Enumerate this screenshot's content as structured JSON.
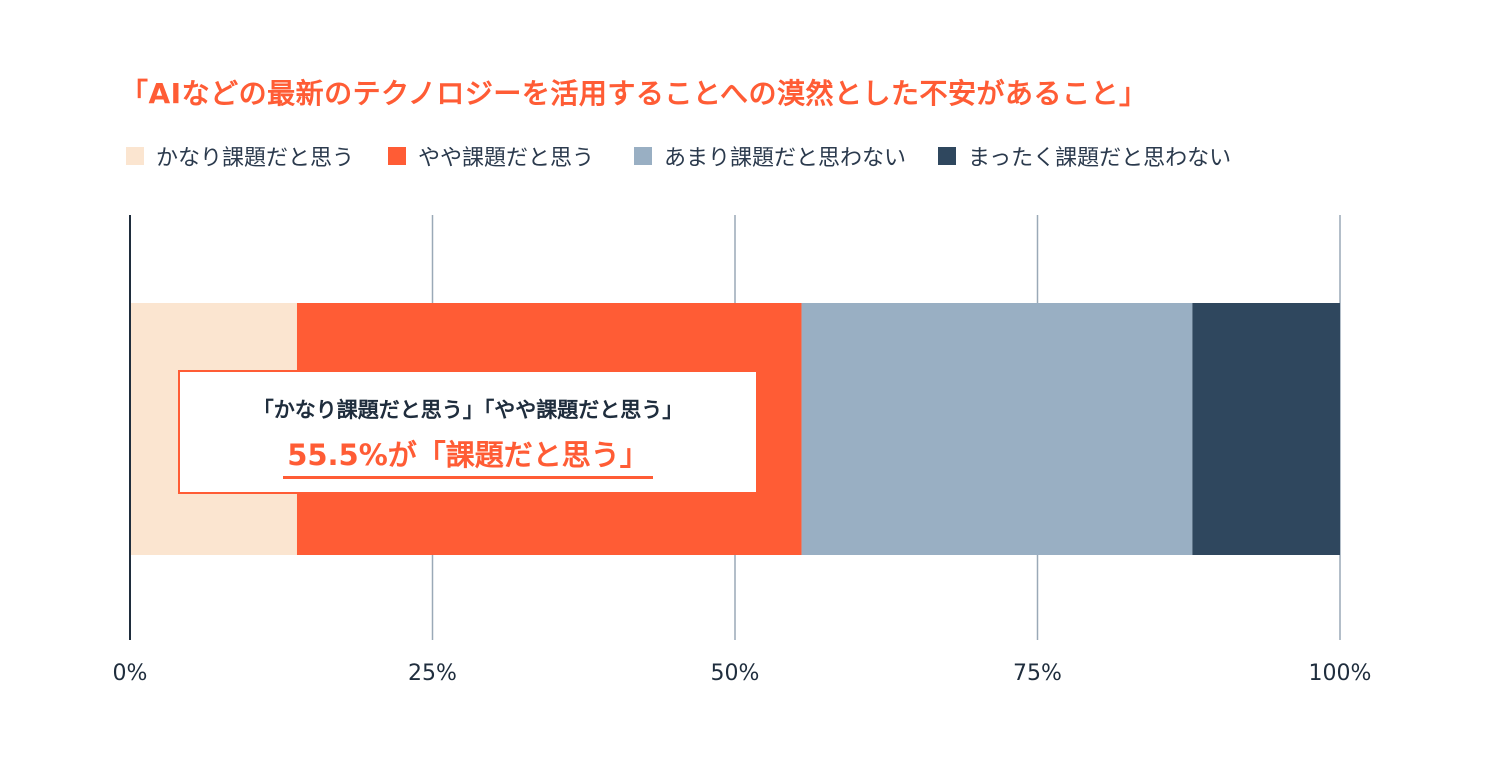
{
  "chart_data": {
    "type": "bar",
    "orientation": "horizontal-stacked",
    "title": "「AIなどの最新のテクノロジーを活用することへの漠然とした不安があること」",
    "xlim": [
      0,
      100
    ],
    "x_ticks": [
      "0%",
      "25%",
      "50%",
      "75%",
      "100%"
    ],
    "x_tick_values": [
      0,
      25,
      50,
      75,
      100
    ],
    "grid": true,
    "legend_position": "top",
    "series": [
      {
        "name": "かなり課題だと思う",
        "values": [
          13.8
        ],
        "color": "#fbe5d0"
      },
      {
        "name": "やや課題だと思う",
        "values": [
          41.7
        ],
        "color": "#ff5c35"
      },
      {
        "name": "あまり課題だと思わない",
        "values": [
          32.3
        ],
        "color": "#99afc3"
      },
      {
        "name": "まったく課題だと思わない",
        "values": [
          12.2
        ],
        "color": "#2f475e"
      }
    ],
    "annotation": {
      "line1": "「かなり課題だと思う」「やや課題だと思う」",
      "line2": "55.5%が「課題だと思う」"
    }
  },
  "colors": {
    "title": "#ff5c35",
    "axis": "#1f2d3d",
    "grid": "#9aa9b7"
  }
}
